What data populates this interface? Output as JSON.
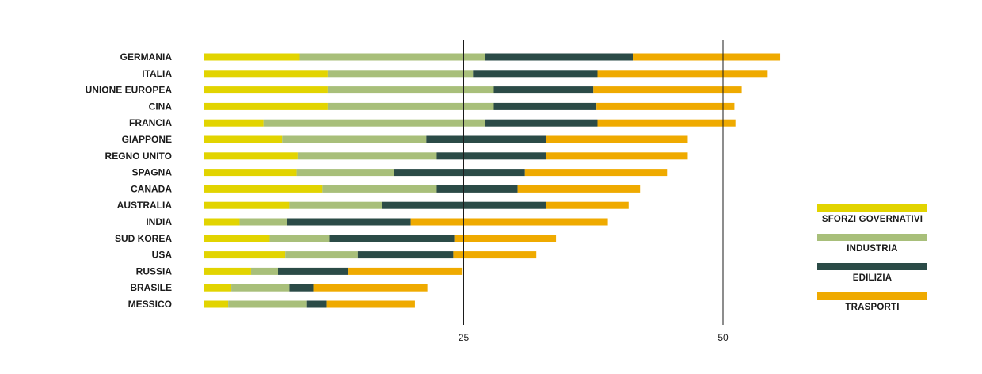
{
  "chart_data": {
    "type": "bar",
    "orientation": "horizontal",
    "stacked": true,
    "title": "",
    "xlabel": "",
    "ylabel": "",
    "xlim": [
      0,
      70
    ],
    "xticks": [
      25,
      50
    ],
    "grid": "vertical lines at ticks",
    "legend_position": "right",
    "categories": [
      "GERMANIA",
      "ITALIA",
      "UNIONE EUROPEA",
      "CINA",
      "FRANCIA",
      "GIAPPONE",
      "REGNO UNITO",
      "SPAGNA",
      "CANADA",
      "AUSTRALIA",
      "INDIA",
      "SUD KOREA",
      "USA",
      "RUSSIA",
      "BRASILE",
      "MESSICO"
    ],
    "series": [
      {
        "name": "SFORZI GOVERNATIVI",
        "color": "#e2d400",
        "values": [
          9.2,
          11.9,
          11.9,
          11.9,
          5.7,
          7.5,
          9.0,
          8.9,
          11.4,
          8.2,
          3.4,
          6.3,
          7.8,
          4.5,
          2.6,
          2.3
        ]
      },
      {
        "name": "INDUSTRIA",
        "color": "#a8bf7a",
        "values": [
          17.9,
          14.0,
          16.0,
          16.0,
          21.4,
          13.9,
          13.4,
          9.4,
          11.0,
          8.9,
          4.6,
          5.8,
          7.0,
          2.6,
          5.6,
          7.6
        ]
      },
      {
        "name": "EDILIZIA",
        "color": "#2b4b47",
        "values": [
          14.2,
          12.0,
          9.6,
          9.9,
          10.8,
          11.5,
          10.5,
          12.6,
          7.8,
          15.8,
          11.9,
          12.0,
          9.2,
          6.8,
          2.3,
          1.9
        ]
      },
      {
        "name": "TRASPORTI",
        "color": "#efaa00",
        "values": [
          14.2,
          16.4,
          14.3,
          13.3,
          13.3,
          13.7,
          13.7,
          13.7,
          11.8,
          8.0,
          19.0,
          9.8,
          8.0,
          11.0,
          11.0,
          8.5
        ]
      }
    ]
  }
}
